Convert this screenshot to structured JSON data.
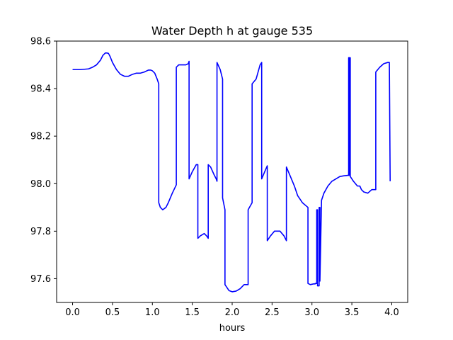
{
  "chart_data": {
    "type": "line",
    "title": "Water Depth h at gauge 535",
    "xlabel": "hours",
    "ylabel": "",
    "xlim": [
      -0.2,
      4.2
    ],
    "ylim": [
      97.5,
      98.6
    ],
    "xticks": [
      0.0,
      0.5,
      1.0,
      1.5,
      2.0,
      2.5,
      3.0,
      3.5,
      4.0
    ],
    "xtick_labels": [
      "0.0",
      "0.5",
      "1.0",
      "1.5",
      "2.0",
      "2.5",
      "3.0",
      "3.5",
      "4.0"
    ],
    "yticks": [
      97.6,
      97.8,
      98.0,
      98.2,
      98.4,
      98.6
    ],
    "ytick_labels": [
      "97.6",
      "97.8",
      "98.0",
      "98.2",
      "98.4",
      "98.6"
    ],
    "grid": false,
    "series_color": "#0000ff",
    "series": [
      {
        "x": [
          0.0,
          0.1,
          0.2,
          0.25,
          0.3,
          0.35,
          0.38,
          0.41,
          0.43,
          0.45,
          0.47,
          0.5,
          0.55,
          0.6,
          0.65,
          0.7,
          0.75,
          0.8,
          0.85,
          0.9,
          0.95,
          0.98,
          1.0,
          1.03,
          1.06,
          1.08,
          1.08,
          1.1,
          1.13,
          1.17,
          1.2,
          1.25,
          1.3,
          1.3,
          1.33,
          1.37,
          1.42,
          1.45,
          1.46,
          1.46,
          1.5,
          1.55,
          1.57,
          1.57,
          1.6,
          1.65,
          1.68,
          1.7,
          1.7,
          1.73,
          1.77,
          1.8,
          1.81,
          1.81,
          1.85,
          1.88,
          1.88,
          1.91,
          1.91,
          1.96,
          2.0,
          2.05,
          2.1,
          2.15,
          2.2,
          2.2,
          2.25,
          2.25,
          2.3,
          2.35,
          2.37,
          2.37,
          2.42,
          2.44,
          2.44,
          2.48,
          2.53,
          2.6,
          2.65,
          2.68,
          2.68,
          2.73,
          2.78,
          2.82,
          2.88,
          2.95,
          2.95,
          2.98,
          3.02,
          3.04,
          3.04,
          3.06,
          3.06,
          3.07,
          3.07,
          3.09,
          3.09,
          3.1,
          3.1,
          3.12,
          3.15,
          3.2,
          3.25,
          3.3,
          3.35,
          3.4,
          3.45,
          3.46,
          3.46,
          3.47,
          3.47,
          3.48,
          3.48,
          3.52,
          3.57,
          3.6,
          3.62,
          3.65,
          3.7,
          3.75,
          3.78,
          3.8,
          3.8,
          3.85,
          3.9,
          3.95,
          3.97,
          3.98,
          3.98
        ],
        "y": [
          98.48,
          98.48,
          98.483,
          98.49,
          98.5,
          98.52,
          98.54,
          98.55,
          98.55,
          98.548,
          98.535,
          98.51,
          98.48,
          98.46,
          98.452,
          98.452,
          98.46,
          98.465,
          98.465,
          98.47,
          98.478,
          98.478,
          98.475,
          98.465,
          98.44,
          98.42,
          97.92,
          97.9,
          97.89,
          97.9,
          97.92,
          97.96,
          97.995,
          98.49,
          98.5,
          98.5,
          98.5,
          98.505,
          98.515,
          98.02,
          98.05,
          98.08,
          98.08,
          97.77,
          97.78,
          97.79,
          97.78,
          97.77,
          98.08,
          98.07,
          98.04,
          98.02,
          98.01,
          98.51,
          98.48,
          98.44,
          97.94,
          97.89,
          97.575,
          97.55,
          97.545,
          97.548,
          97.558,
          97.575,
          97.575,
          97.89,
          97.92,
          98.42,
          98.44,
          98.5,
          98.51,
          98.02,
          98.06,
          98.075,
          97.76,
          97.78,
          97.8,
          97.8,
          97.78,
          97.76,
          98.07,
          98.03,
          97.99,
          97.95,
          97.92,
          97.9,
          97.58,
          97.575,
          97.578,
          97.578,
          97.58,
          97.58,
          97.89,
          97.89,
          97.57,
          97.57,
          97.9,
          97.9,
          97.59,
          97.93,
          97.96,
          97.99,
          98.01,
          98.02,
          98.03,
          98.033,
          98.035,
          98.035,
          98.53,
          98.53,
          98.035,
          98.53,
          98.03,
          98.01,
          97.99,
          97.99,
          97.975,
          97.965,
          97.96,
          97.975,
          97.975,
          97.975,
          98.47,
          98.49,
          98.505,
          98.51,
          98.51,
          98.02,
          98.01
        ]
      }
    ]
  }
}
